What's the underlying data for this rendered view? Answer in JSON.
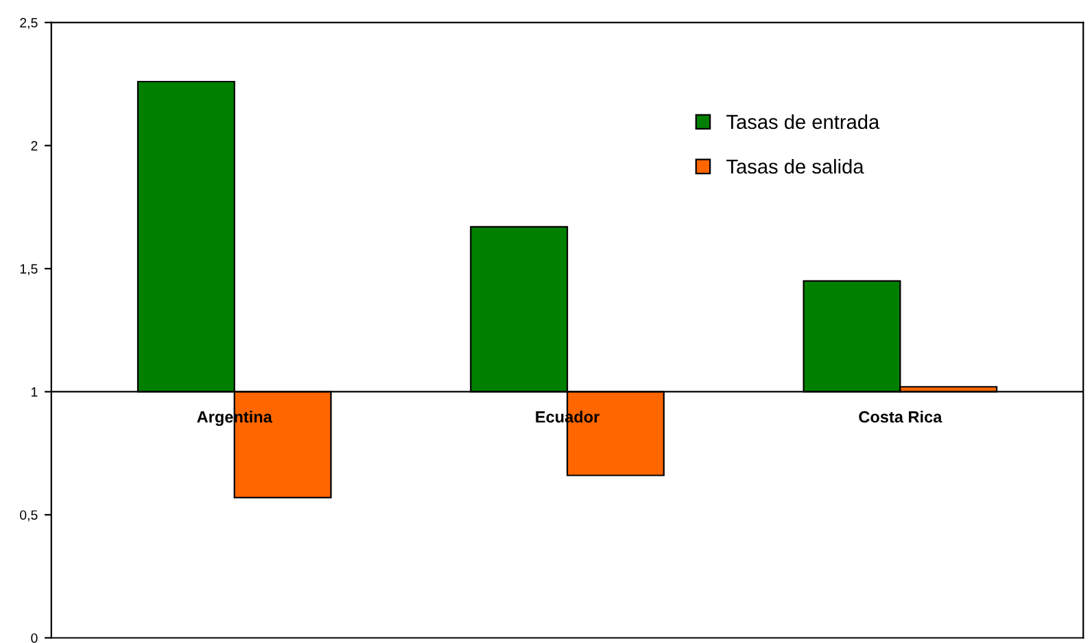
{
  "chart_data": {
    "type": "bar",
    "categories": [
      "Argentina",
      "Ecuador",
      "Costa Rica"
    ],
    "series": [
      {
        "name": "Tasas de entrada",
        "color": "#008000",
        "values": [
          1.26,
          0.67,
          0.45
        ],
        "base": [
          1,
          1,
          1
        ]
      },
      {
        "name": "Tasas de salida",
        "color": "#ff6600",
        "values": [
          -0.43,
          -0.34,
          0.02
        ],
        "base": [
          1,
          1,
          1
        ]
      }
    ],
    "ylim": [
      0,
      2.5
    ],
    "yticks": [
      {
        "value": 0,
        "label": "0"
      },
      {
        "value": 0.5,
        "label": "0,5"
      },
      {
        "value": 1,
        "label": "1"
      },
      {
        "value": 1.5,
        "label": "1,5"
      },
      {
        "value": 2,
        "label": "2"
      },
      {
        "value": 2.5,
        "label": "2,5"
      }
    ],
    "grid": false,
    "legend": "top right"
  }
}
